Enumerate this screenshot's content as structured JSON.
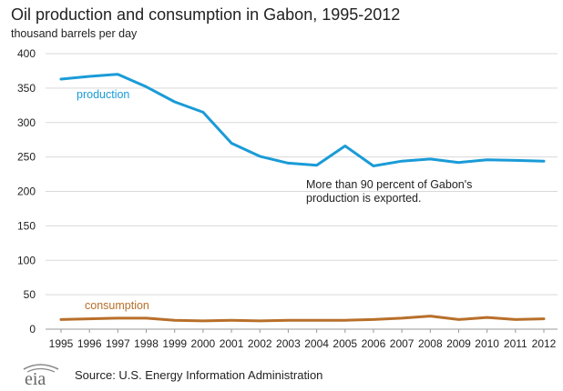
{
  "chart_data": {
    "type": "line",
    "title": "Oil production and consumption in Gabon, 1995-2012",
    "ylabel": "thousand barrels per day",
    "x": [
      1995,
      1996,
      1997,
      1998,
      1999,
      2000,
      2001,
      2002,
      2003,
      2004,
      2005,
      2006,
      2007,
      2008,
      2009,
      2010,
      2011,
      2012
    ],
    "ylim": [
      0,
      400
    ],
    "yticks": [
      0,
      50,
      100,
      150,
      200,
      250,
      300,
      350,
      400
    ],
    "grid": true,
    "series": [
      {
        "name": "production",
        "color": "#1a9bd7",
        "values": [
          363,
          367,
          370,
          352,
          330,
          315,
          270,
          251,
          241,
          238,
          266,
          237,
          244,
          247,
          242,
          246,
          245,
          244
        ]
      },
      {
        "name": "consumption",
        "color": "#b86f2a",
        "values": [
          14,
          15,
          16,
          16,
          13,
          12,
          13,
          12,
          13,
          13,
          13,
          14,
          16,
          19,
          14,
          17,
          14,
          15
        ]
      }
    ],
    "annotation": {
      "line1": "More than 90 percent of Gabon's",
      "line2": "production is exported."
    }
  },
  "footer": {
    "logo_text": "eia",
    "source": "Source: U.S. Energy Information Administration"
  }
}
